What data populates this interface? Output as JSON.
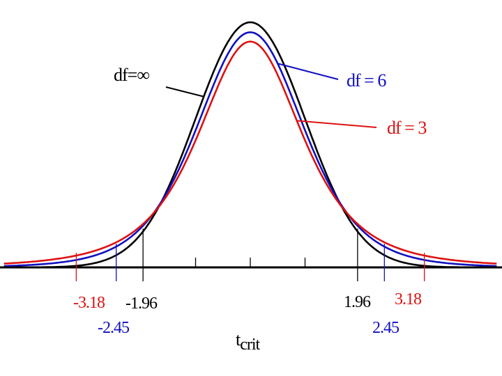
{
  "chart_data": {
    "type": "line",
    "title": "",
    "xlabel": "t",
    "xlabel_subscript": "crit",
    "ylabel": "",
    "xlim": [
      -4.5,
      4.5
    ],
    "grid": false,
    "legend": "inline-callouts",
    "axis_ticks": [
      -1.0,
      1.0
    ],
    "series": [
      {
        "name": "df=∞",
        "df": "inf",
        "color": "#000000",
        "critical": [
          -1.96,
          1.96
        ],
        "critical_labels": [
          "-1.96",
          "1.96"
        ]
      },
      {
        "name": "df = 6",
        "df": 6,
        "color": "#1010c0",
        "critical": [
          -2.45,
          2.45
        ],
        "critical_labels": [
          "-2.45",
          "2.45"
        ]
      },
      {
        "name": "df = 3",
        "df": 3,
        "color": "#dd1111",
        "critical": [
          -3.18,
          3.18
        ],
        "critical_labels": [
          "-3.18",
          "3.18"
        ]
      }
    ]
  }
}
